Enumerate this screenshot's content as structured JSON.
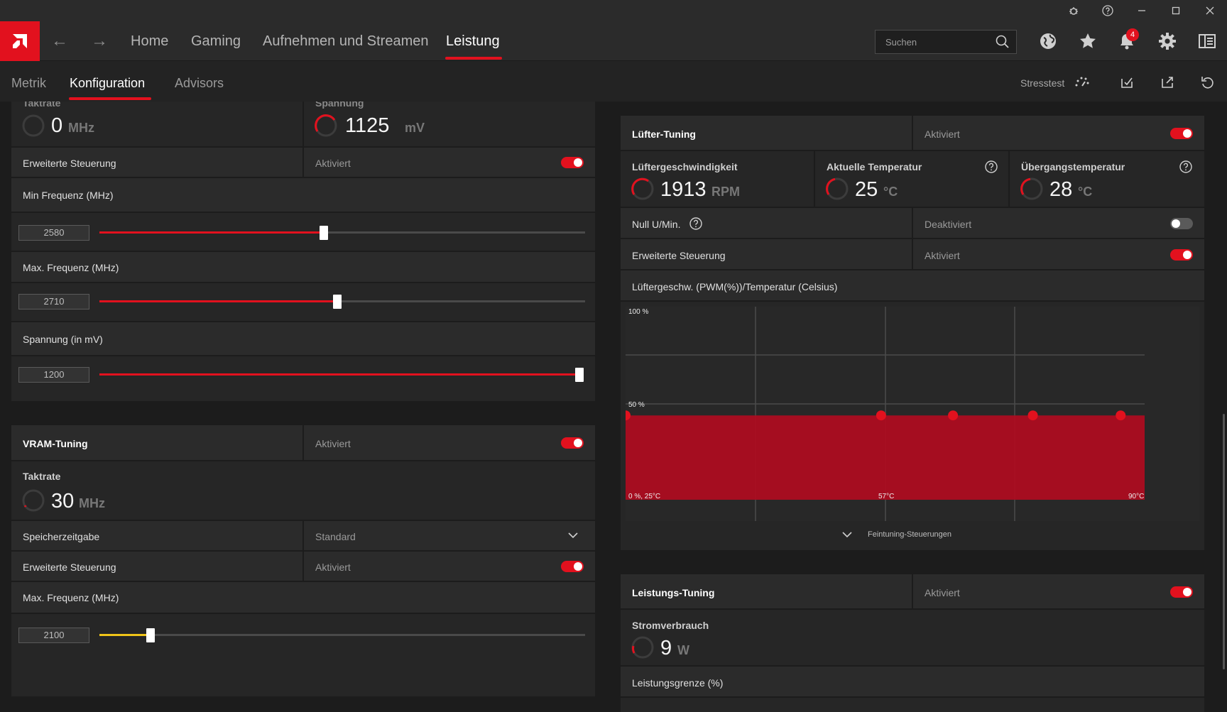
{
  "titlebar": {
    "icons": [
      "bug-icon",
      "help-icon",
      "minimize-icon",
      "maximize-icon",
      "close-icon"
    ]
  },
  "nav": {
    "items": [
      {
        "label": "Home"
      },
      {
        "label": "Gaming"
      },
      {
        "label": "Aufnehmen und Streamen"
      },
      {
        "label": "Leistung"
      }
    ],
    "active": "Leistung",
    "search_placeholder": "Suchen",
    "notification_count": "4"
  },
  "subnav": {
    "items": [
      {
        "label": "Metrik"
      },
      {
        "label": "Konfiguration"
      },
      {
        "label": "Advisors"
      }
    ],
    "active": "Konfiguration",
    "stresstest": "Stresstest"
  },
  "gpu": {
    "clock": {
      "label": "Taktrate",
      "value": "0",
      "unit": "MHz"
    },
    "voltage": {
      "label": "Spannung",
      "value": "1125",
      "unit": "mV"
    },
    "advanced": {
      "label": "Erweiterte Steuerung",
      "status": "Aktiviert",
      "enabled": true
    },
    "min_freq": {
      "label": "Min Frequenz (MHz)",
      "value": "2580",
      "level": 0.46
    },
    "max_freq": {
      "label": "Max. Frequenz (MHz)",
      "value": "2710",
      "level": 0.49
    },
    "voltage_slider": {
      "label": "Spannung (in mV)",
      "value": "1200",
      "level": 1.0
    }
  },
  "vram": {
    "title": "VRAM-Tuning",
    "status": "Aktiviert",
    "clock": {
      "label": "Taktrate",
      "value": "30",
      "unit": "MHz"
    },
    "timing": {
      "label": "Speicherzeitgabe",
      "value": "Standard"
    },
    "advanced": {
      "label": "Erweiterte Steuerung",
      "status": "Aktiviert"
    },
    "max_freq": {
      "label": "Max. Frequenz (MHz)",
      "value": "2100",
      "level": 0.11
    }
  },
  "fan": {
    "title": "Lüfter-Tuning",
    "status": "Aktiviert",
    "speed": {
      "label": "Lüftergeschwindigkeit",
      "value": "1913",
      "unit": "RPM"
    },
    "temp": {
      "label": "Aktuelle Temperatur",
      "value": "25",
      "unit": "°C"
    },
    "junction": {
      "label": "Übergangstemperatur",
      "value": "28",
      "unit": "°C"
    },
    "zero_rpm": {
      "label": "Null U/Min.",
      "status": "Deaktiviert"
    },
    "advanced": {
      "label": "Erweiterte Steuerung",
      "status": "Aktiviert"
    },
    "curve_label": "Lüftergeschw. (PWM(%))/Temperatur (Celsius)",
    "fine_tune": "Feintuning-Steuerungen"
  },
  "chart_data": {
    "type": "area",
    "title": "Lüftergeschw. (PWM(%))/Temperatur (Celsius)",
    "x_ticks": [
      "0 %, 25°C",
      "57°C",
      "90°C"
    ],
    "y_ticks": [
      "100 %",
      "50 %"
    ],
    "xlim": [
      25,
      90
    ],
    "ylim": [
      0,
      100
    ],
    "series": [
      {
        "x": [
          25,
          57,
          66,
          76,
          87
        ],
        "y": [
          45,
          45,
          45,
          45,
          45
        ]
      }
    ]
  },
  "power": {
    "title": "Leistungs-Tuning",
    "status": "Aktiviert",
    "consumption": {
      "label": "Stromverbrauch",
      "value": "9",
      "unit": "W"
    },
    "limit_label": "Leistungsgrenze (%)"
  },
  "colors": {
    "accent": "#e2111e",
    "vram_accent": "#f0c419"
  }
}
